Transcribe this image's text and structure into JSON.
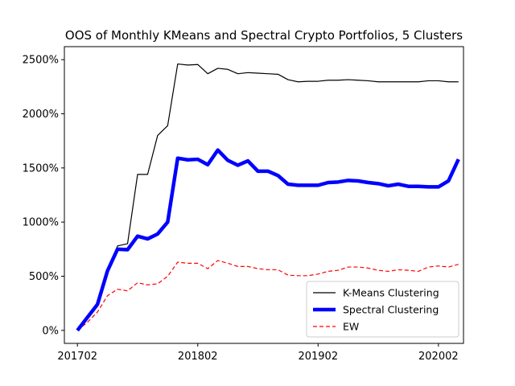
{
  "chart_data": {
    "type": "line",
    "title": "OOS of Monthly KMeans and Spectral Crypto Portfolios, 5 Clusters",
    "xlabel": "",
    "ylabel": "",
    "x_start": "201702",
    "x_tick_labels": [
      "201702",
      "201802",
      "201902",
      "202002"
    ],
    "y_ticks": [
      0,
      500,
      1000,
      1500,
      2000,
      2500
    ],
    "y_tick_suffix": "%",
    "ylim": [
      -120,
      2620
    ],
    "xlim_months": [
      -1.3,
      38.5
    ],
    "legend_position": "lower-right",
    "series": [
      {
        "name": "K-Means Clustering",
        "color": "#000000",
        "linewidth": 1.2,
        "dash": "",
        "values": [
          0,
          120,
          240,
          550,
          780,
          800,
          1440,
          1440,
          1800,
          1890,
          2460,
          2450,
          2455,
          2370,
          2420,
          2410,
          2370,
          2380,
          2375,
          2370,
          2365,
          2315,
          2295,
          2300,
          2300,
          2310,
          2310,
          2315,
          2310,
          2305,
          2295,
          2295,
          2295,
          2295,
          2295,
          2305,
          2305,
          2295,
          2295
        ]
      },
      {
        "name": "Spectral Clustering",
        "color": "#0000ff",
        "linewidth": 4.5,
        "dash": "",
        "values": [
          0,
          120,
          240,
          550,
          750,
          745,
          870,
          845,
          890,
          1000,
          1590,
          1575,
          1580,
          1530,
          1665,
          1570,
          1525,
          1565,
          1470,
          1470,
          1430,
          1350,
          1340,
          1340,
          1340,
          1365,
          1370,
          1385,
          1380,
          1365,
          1355,
          1335,
          1350,
          1330,
          1330,
          1325,
          1325,
          1380,
          1580
        ]
      },
      {
        "name": "EW",
        "color": "#ff0000",
        "linewidth": 1.2,
        "dash": "5,3",
        "values": [
          0,
          75,
          170,
          320,
          380,
          365,
          440,
          420,
          430,
          500,
          630,
          620,
          620,
          570,
          645,
          620,
          590,
          590,
          570,
          560,
          560,
          510,
          505,
          505,
          520,
          545,
          555,
          585,
          585,
          575,
          555,
          545,
          560,
          555,
          545,
          585,
          595,
          585,
          610
        ]
      }
    ]
  }
}
